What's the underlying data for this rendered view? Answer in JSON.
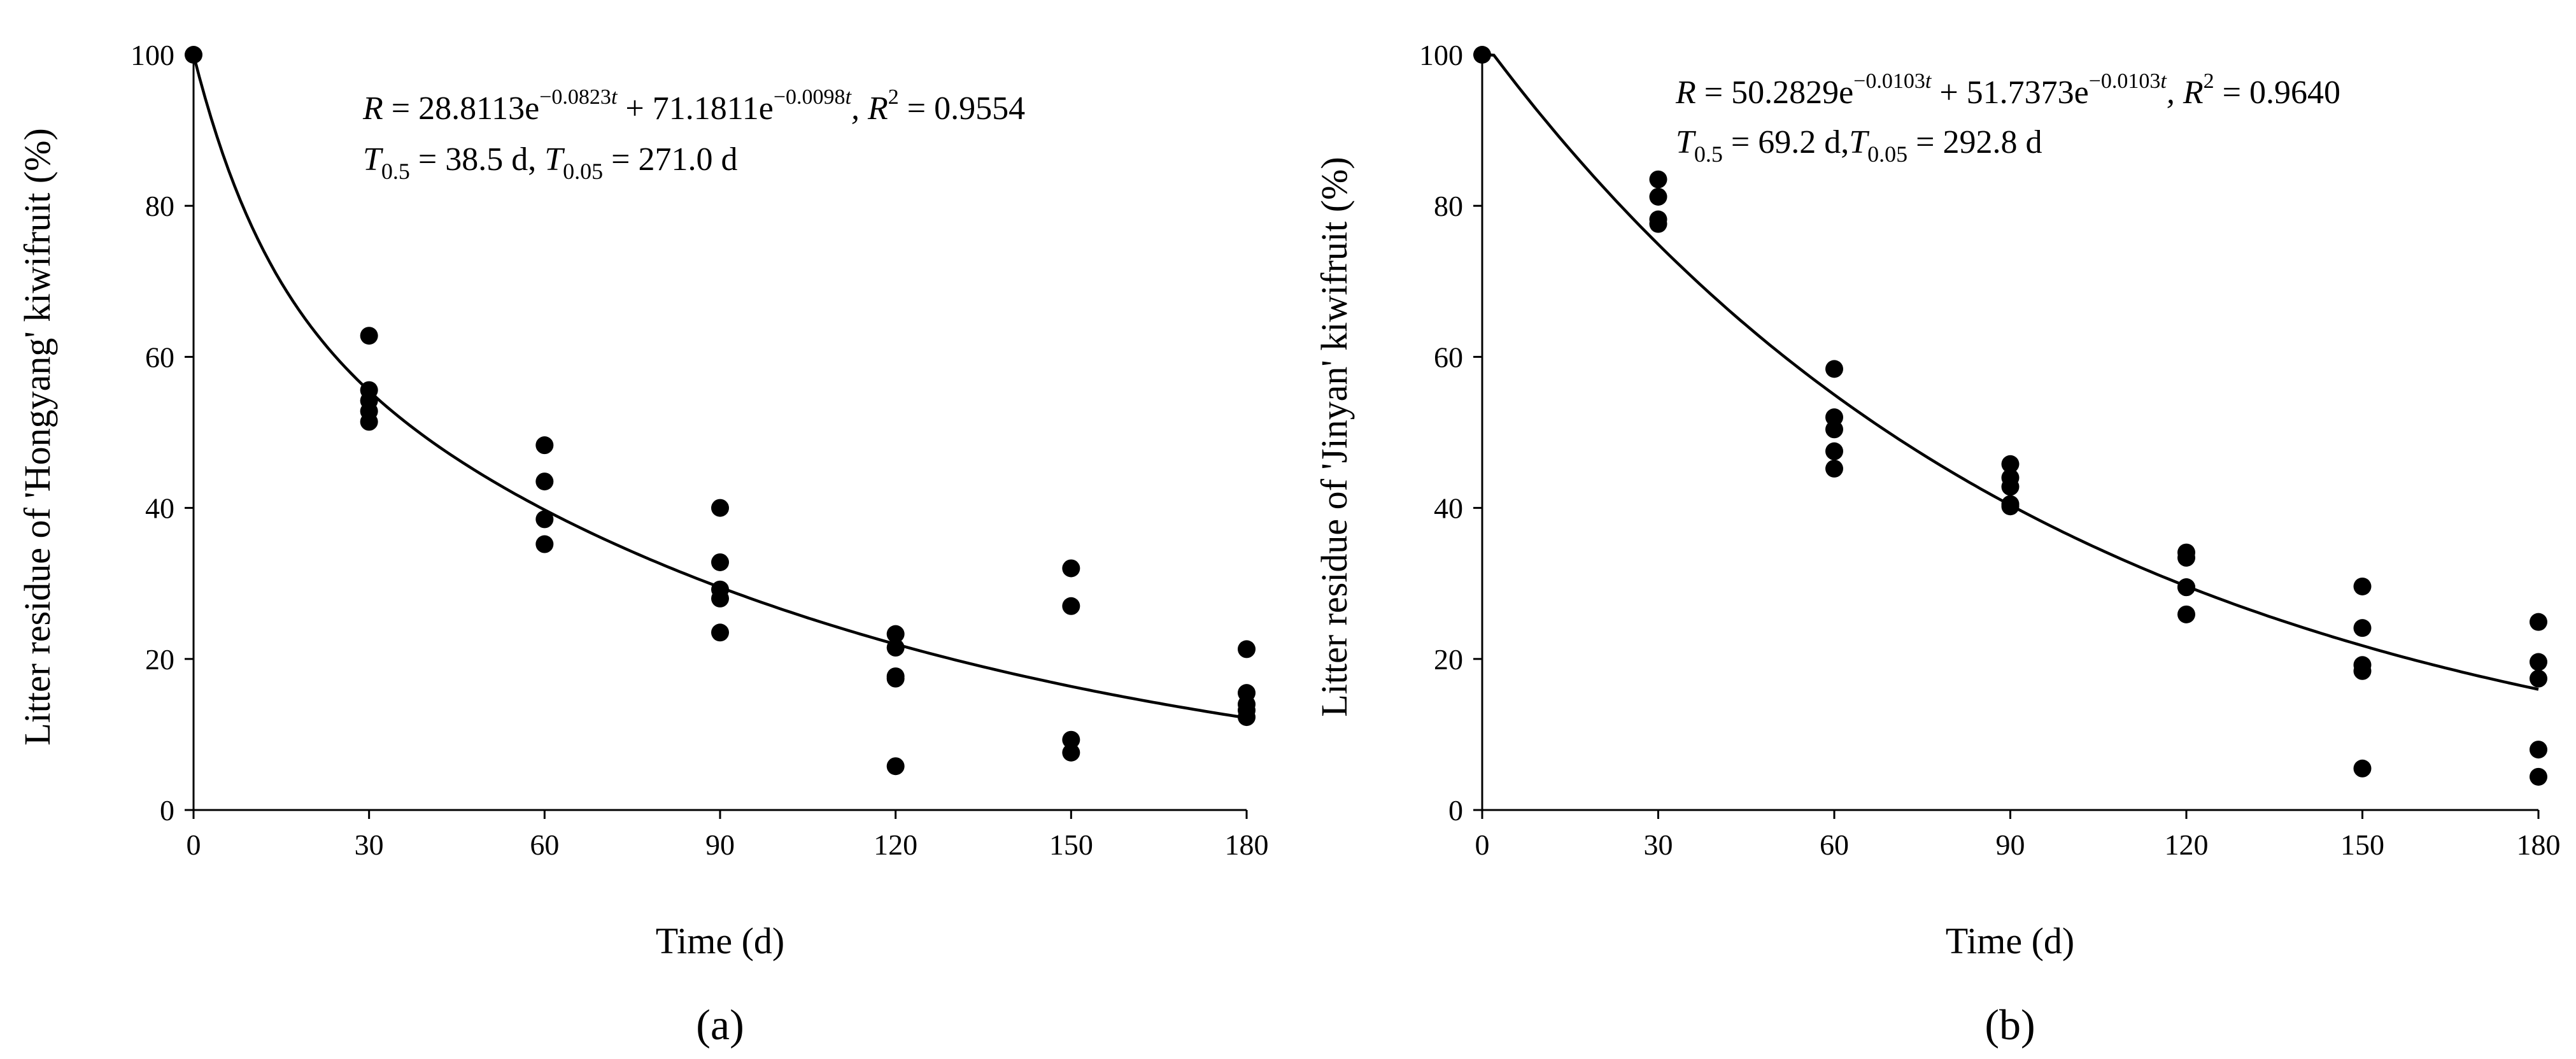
{
  "chart_data": [
    {
      "id": "a",
      "type": "scatter",
      "panel_label": "(a)",
      "xlabel": "Time (d)",
      "ylabel": "Litter residue of 'Hongyang' kiwifruit (%)",
      "xlim": [
        0,
        180
      ],
      "ylim": [
        0,
        100
      ],
      "x_ticks": [
        0,
        30,
        60,
        90,
        120,
        150,
        180
      ],
      "y_ticks": [
        0,
        20,
        40,
        60,
        80,
        100
      ],
      "grid": false,
      "series": [
        {
          "name": "observed",
          "kind": "points",
          "x": [
            0,
            30,
            30,
            30,
            30,
            30,
            60,
            60,
            60,
            60,
            90,
            90,
            90,
            90,
            90,
            120,
            120,
            120,
            120,
            120,
            150,
            150,
            150,
            150,
            180,
            180,
            180,
            180,
            180
          ],
          "y": [
            100,
            62.8,
            55.6,
            54.2,
            52.8,
            51.4,
            48.3,
            43.5,
            38.5,
            35.2,
            40,
            32.8,
            29.2,
            28,
            23.5,
            23.3,
            21.5,
            17.7,
            17.4,
            5.8,
            32,
            27,
            9.3,
            7.6,
            21.3,
            15.5,
            14,
            13.2,
            12.3
          ]
        },
        {
          "name": "fit",
          "kind": "line",
          "model": "double_exponential",
          "params": {
            "a": 28.8113,
            "k1": 0.0823,
            "b": 71.1811,
            "k2": 0.0098
          }
        }
      ],
      "annotation": {
        "R": "R",
        "eq_t1": " = 28.8113e",
        "exp1": "−0.0823",
        "eq_t2": " + 71.1811e",
        "exp2": "−0.0098",
        "t": "t",
        "r2_lbl": ", R",
        "two": "2",
        "r2_val": " = 0.9554",
        "T": "T",
        "sub1": "0.5",
        "half_val": " = 38.5 d, ",
        "sub2": "0.05",
        "t05_val": " = 271.0 d"
      }
    },
    {
      "id": "b",
      "type": "scatter",
      "panel_label": "(b)",
      "xlabel": "Time (d)",
      "ylabel": "Litter residue of 'Jinyan' kiwifruit (%)",
      "xlim": [
        0,
        180
      ],
      "ylim": [
        0,
        100
      ],
      "x_ticks": [
        0,
        30,
        60,
        90,
        120,
        150,
        180
      ],
      "y_ticks": [
        0,
        20,
        40,
        60,
        80,
        100
      ],
      "grid": false,
      "series": [
        {
          "name": "observed",
          "kind": "points",
          "x": [
            0,
            30,
            30,
            30,
            30,
            60,
            60,
            60,
            60,
            60,
            90,
            90,
            90,
            90,
            90,
            120,
            120,
            120,
            120,
            120,
            150,
            150,
            150,
            150,
            150,
            180,
            180,
            180,
            180,
            180
          ],
          "y": [
            100,
            83.5,
            81.2,
            78.2,
            77.6,
            58.4,
            52,
            50.4,
            47.5,
            45.2,
            45.8,
            44,
            42.8,
            40.2,
            40.5,
            34.1,
            33.4,
            29.5,
            29.5,
            25.9,
            29.6,
            24.1,
            19.2,
            18.4,
            5.5,
            24.9,
            19.6,
            17.4,
            8.0,
            4.4
          ]
        },
        {
          "name": "fit",
          "kind": "line",
          "model": "double_exponential",
          "params": {
            "a": 50.2829,
            "k1": 0.0103,
            "b": 51.7373,
            "k2": 0.0103
          }
        }
      ],
      "annotation": {
        "R": "R",
        "eq_t1": " = 50.2829e",
        "exp1": "−0.0103",
        "eq_t2": " + 51.7373e",
        "exp2": "−0.0103",
        "t": "t",
        "r2_lbl": ", R",
        "two": "2",
        "r2_val": " = 0.9640",
        "T": "T",
        "sub1": "0.5",
        "half_val": " = 69.2 d,",
        "sub2": "0.05",
        "t05_val": " = 292.8 d"
      }
    }
  ]
}
